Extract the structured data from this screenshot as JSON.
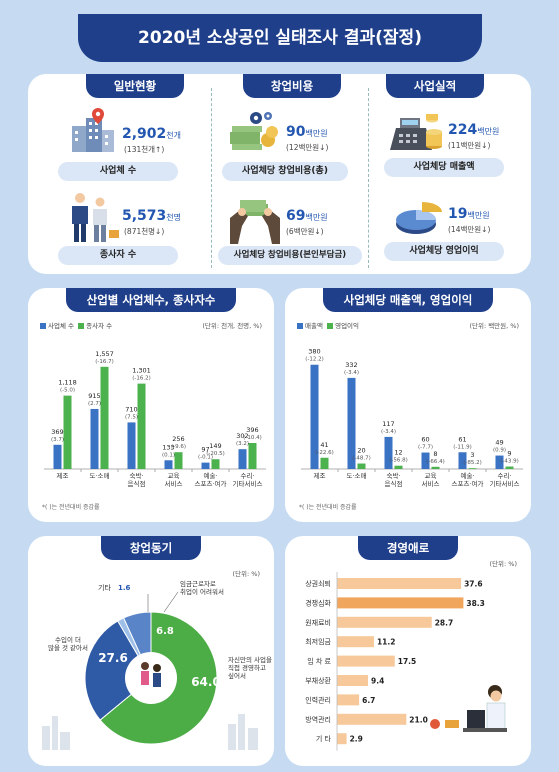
{
  "title": "2020년 소상공인 실태조사 결과(잠정)",
  "general": {
    "tab": "일반현황",
    "businesses": {
      "value": "2,902",
      "unit": "천개",
      "change": "(131천개↑)",
      "label": "사업체 수"
    },
    "workers": {
      "value": "5,573",
      "unit": "천명",
      "change": "(871천명↓)",
      "label": "종사자 수"
    }
  },
  "startup_cost": {
    "tab": "창업비용",
    "total": {
      "value": "90",
      "unit": "백만원",
      "change": "(12백만원↓)",
      "label": "사업체당 창업비용(총)"
    },
    "own": {
      "value": "69",
      "unit": "백만원",
      "change": "(6백만원↓)",
      "label": "사업체당 창업비용(본인부담금)"
    }
  },
  "performance": {
    "tab": "사업실적",
    "sales": {
      "value": "224",
      "unit": "백만원",
      "change": "(11백만원↓)",
      "label": "사업체당 매출액"
    },
    "profit": {
      "value": "19",
      "unit": "백만원",
      "change": "(14백만원↓)",
      "label": "사업체당 영업이익"
    }
  },
  "industry_panel": {
    "tab": "산업별 사업체수, 종사자수",
    "unit": "(단위: 천개, 천명, %)",
    "note": "*(   )는 전년대비 증감률"
  },
  "sales_panel": {
    "tab": "사업체당 매출액, 영업이익",
    "unit": "(단위: 백만원, %)",
    "note": "*(   )는 전년대비 증감률"
  },
  "motive_panel": {
    "tab": "창업동기",
    "unit": "(단위: %)"
  },
  "difficulty_panel": {
    "tab": "경영애로",
    "unit": "(단위: %)"
  },
  "chart_data": [
    {
      "type": "bar",
      "categories": [
        "제조",
        "도·소매",
        "숙박·\n음식점",
        "교육\n서비스",
        "예술·\n스포츠·여가",
        "수리·\n기타서비스"
      ],
      "series": [
        {
          "name": "사업체 수",
          "color": "#3a72c4",
          "values": [
            369,
            915,
            710,
            133,
            97,
            302
          ],
          "changes": [
            "(3.7)",
            "(2.7)",
            "(7.5)",
            "(0.1)",
            "(-0.1)",
            "(3.2)"
          ]
        },
        {
          "name": "종사자 수",
          "color": "#4cb24e",
          "values": [
            1118,
            1557,
            1301,
            256,
            149,
            396
          ],
          "changes": [
            "(-5.0)",
            "(-16.7)",
            "(-16.2)",
            "(-9.6)",
            "(-20.5)",
            "(-10.4)"
          ]
        }
      ]
    },
    {
      "type": "bar",
      "categories": [
        "제조",
        "도·소매",
        "숙박·\n음식점",
        "교육\n서비스",
        "예술·\n스포츠·여가",
        "수리·\n기타서비스"
      ],
      "series": [
        {
          "name": "매출액",
          "color": "#3a72c4",
          "values": [
            380,
            332,
            117,
            60,
            61,
            49
          ],
          "changes": [
            "(-12.2)",
            "(-3.4)",
            "(-3.4)",
            "(-7.7)",
            "(-11.9)",
            "(0.9)"
          ]
        },
        {
          "name": "영업이익",
          "color": "#4cb24e",
          "values": [
            41,
            20,
            12,
            8,
            3,
            9
          ],
          "changes": [
            "(-22.6)",
            "(-48.7)",
            "(-56.8)",
            "(-66.4)",
            "(-85.2)",
            "(-43.9)"
          ]
        }
      ]
    },
    {
      "type": "pie",
      "slices": [
        {
          "label": "자신만의 사업을\n직접 경영하고\n싶어서",
          "value": 64.0,
          "color": "#4cac45"
        },
        {
          "label": "수입이 더\n많을 것 같아서",
          "value": 27.6,
          "color": "#2e5aa6"
        },
        {
          "label": "기타",
          "value": 1.6,
          "color": "#9ec0e8"
        },
        {
          "label": "임금근로자로\n취업이 어려워서",
          "value": 6.8,
          "color": "#5a84c8"
        }
      ]
    },
    {
      "type": "bar",
      "orientation": "horizontal",
      "categories": [
        "상권쇠퇴",
        "경쟁심화",
        "원재료비",
        "최저임금",
        "임 차 료",
        "부채상환",
        "인력관리",
        "방역관리",
        "기      타"
      ],
      "values": [
        37.6,
        38.3,
        28.7,
        11.2,
        17.5,
        9.4,
        6.7,
        21.0,
        2.9
      ],
      "colors": [
        "#f7c99a",
        "#f0a65d",
        "#f7c99a",
        "#f7c99a",
        "#f7c99a",
        "#f7c99a",
        "#f7c99a",
        "#f7c99a",
        "#f7c99a"
      ]
    }
  ]
}
